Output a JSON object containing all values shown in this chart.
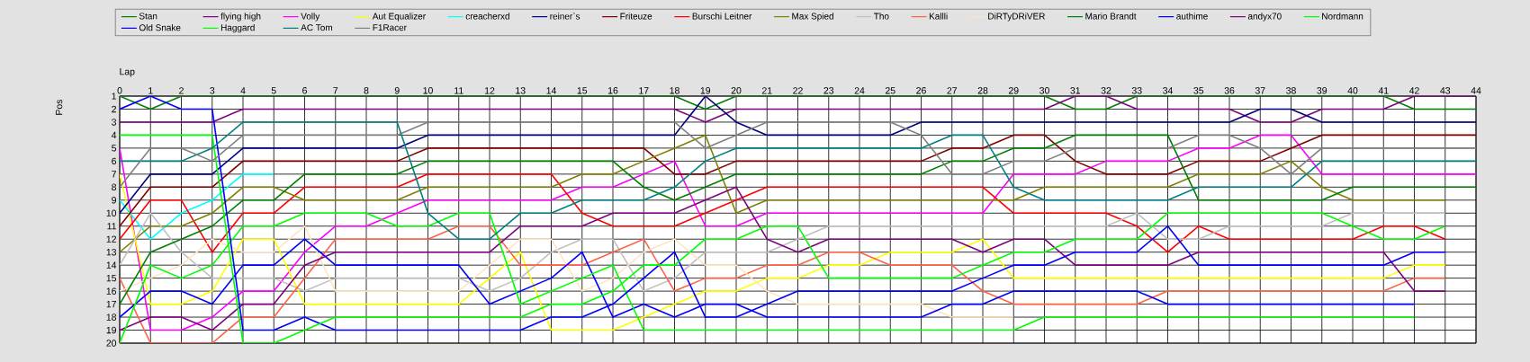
{
  "chart_data": {
    "type": "line",
    "xlabel": "Lap",
    "ylabel": "Pos",
    "xlim": [
      0,
      44
    ],
    "ylim": [
      20,
      1
    ],
    "xticks": [
      0,
      1,
      2,
      3,
      4,
      5,
      6,
      7,
      8,
      9,
      10,
      11,
      12,
      13,
      14,
      15,
      16,
      17,
      18,
      19,
      20,
      21,
      22,
      23,
      24,
      25,
      26,
      27,
      28,
      29,
      30,
      31,
      32,
      33,
      34,
      35,
      36,
      37,
      38,
      39,
      40,
      41,
      42,
      43,
      44
    ],
    "yticks": [
      1,
      2,
      3,
      4,
      5,
      6,
      7,
      8,
      9,
      10,
      11,
      12,
      13,
      14,
      15,
      16,
      17,
      18,
      19,
      20
    ],
    "x": [
      0,
      1,
      2,
      3,
      4,
      5,
      6,
      7,
      8,
      9,
      10,
      11,
      12,
      13,
      14,
      15,
      16,
      17,
      18,
      19,
      20,
      21,
      22,
      23,
      24,
      25,
      26,
      27,
      28,
      29,
      30,
      31,
      32,
      33,
      34,
      35,
      36,
      37,
      38,
      39,
      40,
      41,
      42,
      43,
      44
    ],
    "grid": true,
    "legend": "top",
    "series": [
      {
        "name": "Stan",
        "color": "#008000",
        "values": [
          1,
          2,
          1,
          1,
          1,
          1,
          1,
          1,
          1,
          1,
          1,
          1,
          1,
          1,
          1,
          1,
          1,
          1,
          1,
          2,
          1,
          1,
          1,
          1,
          1,
          1,
          1,
          1,
          1,
          1,
          1,
          2,
          2,
          1,
          1,
          1,
          1,
          1,
          1,
          1,
          1,
          1,
          2,
          2,
          2
        ]
      },
      {
        "name": "flying high",
        "color": "#800080",
        "values": [
          3,
          3,
          3,
          3,
          2,
          2,
          2,
          2,
          2,
          2,
          2,
          2,
          2,
          2,
          2,
          2,
          2,
          2,
          2,
          3,
          2,
          2,
          2,
          2,
          2,
          2,
          2,
          2,
          2,
          2,
          2,
          1,
          1,
          2,
          2,
          2,
          2,
          3,
          3,
          2,
          2,
          2,
          1,
          1,
          1
        ]
      },
      {
        "name": "Volly",
        "color": "#ff00ff",
        "values": [
          5,
          19,
          19,
          18,
          16,
          16,
          13,
          11,
          11,
          10,
          9,
          9,
          9,
          9,
          9,
          8,
          8,
          7,
          6,
          11,
          11,
          10,
          10,
          10,
          10,
          10,
          10,
          10,
          10,
          7,
          7,
          7,
          6,
          6,
          6,
          5,
          5,
          4,
          4,
          7,
          7,
          7,
          7,
          7,
          7
        ]
      },
      {
        "name": "Aut Equalizer",
        "color": "#ffff00",
        "values": [
          7,
          17,
          17,
          16,
          12,
          12,
          17,
          17,
          17,
          17,
          17,
          17,
          15,
          13,
          19,
          19,
          19,
          18,
          17,
          16,
          16,
          15,
          15,
          14,
          14,
          13,
          13,
          13,
          12,
          15,
          15,
          15,
          15,
          15,
          15,
          15,
          15,
          15,
          15,
          15,
          15,
          15,
          14,
          14,
          null
        ]
      },
      {
        "name": "creacherxd",
        "color": "#00ffff",
        "values": [
          9,
          12,
          10,
          9,
          7,
          7,
          null,
          null,
          null,
          null,
          null,
          null,
          null,
          null,
          null,
          null,
          null,
          null,
          null,
          null,
          null,
          null,
          null,
          null,
          null,
          null,
          null,
          null,
          null,
          null,
          null,
          null,
          null,
          null,
          null,
          null,
          null,
          null,
          null,
          null,
          null,
          null,
          null,
          null,
          null
        ]
      },
      {
        "name": "reiner`s",
        "color": "#000080",
        "values": [
          10,
          7,
          7,
          7,
          5,
          5,
          5,
          5,
          5,
          5,
          4,
          4,
          4,
          4,
          4,
          4,
          4,
          4,
          4,
          1,
          3,
          4,
          4,
          4,
          4,
          4,
          3,
          3,
          3,
          3,
          3,
          3,
          3,
          3,
          3,
          3,
          3,
          2,
          2,
          3,
          3,
          3,
          3,
          3,
          3
        ]
      },
      {
        "name": "Friteuze",
        "color": "#800000",
        "values": [
          11,
          8,
          8,
          8,
          6,
          6,
          6,
          6,
          6,
          6,
          5,
          5,
          5,
          5,
          5,
          5,
          5,
          5,
          7,
          7,
          6,
          6,
          6,
          6,
          6,
          6,
          6,
          5,
          5,
          4,
          4,
          6,
          7,
          7,
          7,
          6,
          6,
          6,
          5,
          4,
          4,
          4,
          4,
          4,
          4
        ]
      },
      {
        "name": "Burschi Leitner",
        "color": "#ff0000",
        "values": [
          12,
          9,
          9,
          13,
          10,
          10,
          8,
          8,
          8,
          8,
          7,
          7,
          7,
          7,
          7,
          10,
          11,
          11,
          11,
          10,
          9,
          8,
          8,
          8,
          8,
          8,
          8,
          8,
          8,
          10,
          10,
          10,
          10,
          11,
          13,
          11,
          12,
          12,
          12,
          12,
          12,
          11,
          11,
          12,
          null
        ]
      },
      {
        "name": "Max Spied",
        "color": "#808000",
        "values": [
          13,
          11,
          11,
          10,
          8,
          8,
          9,
          9,
          9,
          9,
          8,
          8,
          8,
          8,
          8,
          7,
          7,
          6,
          5,
          4,
          10,
          9,
          9,
          9,
          9,
          9,
          9,
          9,
          9,
          9,
          8,
          8,
          8,
          8,
          8,
          7,
          7,
          7,
          6,
          8,
          9,
          9,
          9,
          9,
          null
        ]
      },
      {
        "name": "Tho",
        "color": "#c0c0c0",
        "values": [
          14,
          10,
          13,
          15,
          15,
          15,
          16,
          15,
          15,
          15,
          15,
          15,
          16,
          15,
          13,
          12,
          12,
          16,
          15,
          13,
          13,
          13,
          12,
          11,
          11,
          11,
          11,
          11,
          11,
          11,
          11,
          11,
          11,
          10,
          12,
          12,
          11,
          11,
          11,
          11,
          10,
          10,
          10,
          10,
          null
        ]
      },
      {
        "name": "Kallli",
        "color": "#ff6347",
        "values": [
          15,
          20,
          20,
          20,
          18,
          18,
          15,
          12,
          12,
          12,
          12,
          11,
          11,
          14,
          14,
          14,
          13,
          12,
          16,
          15,
          15,
          14,
          14,
          13,
          13,
          14,
          14,
          14,
          16,
          17,
          17,
          17,
          17,
          17,
          16,
          16,
          16,
          16,
          16,
          16,
          16,
          16,
          15,
          15,
          null
        ]
      },
      {
        "name": "DiRTyDRiVER",
        "color": "#ffe4c4",
        "values": [
          16,
          15,
          14,
          12,
          13,
          13,
          11,
          16,
          16,
          16,
          16,
          16,
          14,
          12,
          12,
          16,
          15,
          13,
          12,
          14,
          14,
          16,
          17,
          17,
          17,
          17,
          17,
          18,
          18,
          18,
          null,
          null,
          null,
          null,
          null,
          null,
          null,
          null,
          null,
          null,
          null,
          null,
          null,
          null,
          null
        ]
      },
      {
        "name": "Mario Brandt",
        "color": "#008000",
        "values": [
          17,
          13,
          12,
          11,
          9,
          9,
          7,
          7,
          7,
          7,
          6,
          6,
          6,
          6,
          6,
          6,
          6,
          8,
          9,
          8,
          7,
          7,
          7,
          7,
          7,
          7,
          7,
          6,
          6,
          5,
          5,
          4,
          4,
          4,
          4,
          9,
          9,
          9,
          9,
          9,
          8,
          8,
          8,
          8,
          8
        ]
      },
      {
        "name": "authime",
        "color": "#0000ff",
        "values": [
          18,
          16,
          16,
          17,
          14,
          14,
          12,
          14,
          14,
          14,
          14,
          14,
          17,
          16,
          15,
          13,
          18,
          17,
          18,
          17,
          17,
          18,
          18,
          18,
          18,
          18,
          18,
          17,
          17,
          16,
          16,
          16,
          16,
          16,
          17,
          17,
          17,
          17,
          17,
          17,
          17,
          17,
          17,
          null,
          null
        ]
      },
      {
        "name": "andyx70",
        "color": "#800080",
        "values": [
          19,
          18,
          18,
          19,
          17,
          17,
          14,
          13,
          13,
          13,
          13,
          13,
          13,
          11,
          11,
          11,
          10,
          10,
          10,
          9,
          8,
          12,
          13,
          12,
          12,
          12,
          12,
          12,
          13,
          12,
          12,
          14,
          14,
          14,
          14,
          13,
          13,
          13,
          13,
          13,
          13,
          13,
          16,
          16,
          null
        ]
      },
      {
        "name": "Nordmann",
        "color": "#00ff00",
        "values": [
          20,
          14,
          15,
          14,
          11,
          11,
          10,
          10,
          10,
          11,
          11,
          10,
          10,
          17,
          16,
          15,
          14,
          19,
          19,
          19,
          19,
          19,
          19,
          19,
          19,
          19,
          19,
          19,
          19,
          19,
          18,
          18,
          18,
          18,
          18,
          18,
          18,
          18,
          18,
          18,
          18,
          18,
          18,
          null,
          null
        ]
      },
      {
        "name": "Old Snake",
        "color": "#0000ff",
        "values": [
          2,
          1,
          2,
          2,
          19,
          19,
          18,
          19,
          19,
          19,
          19,
          19,
          19,
          19,
          18,
          18,
          17,
          15,
          13,
          18,
          18,
          17,
          16,
          16,
          16,
          16,
          16,
          16,
          15,
          14,
          14,
          13,
          13,
          13,
          11,
          14,
          14,
          14,
          14,
          14,
          14,
          14,
          13,
          13,
          null
        ]
      },
      {
        "name": "Haggard",
        "color": "#00ff00",
        "values": [
          4,
          4,
          4,
          4,
          20,
          20,
          19,
          18,
          18,
          18,
          18,
          18,
          18,
          18,
          17,
          17,
          16,
          14,
          14,
          12,
          12,
          11,
          11,
          15,
          15,
          15,
          15,
          15,
          14,
          13,
          13,
          12,
          12,
          12,
          10,
          10,
          10,
          10,
          10,
          10,
          11,
          12,
          12,
          11,
          null
        ]
      },
      {
        "name": "AC Tom",
        "color": "#008080",
        "values": [
          6,
          6,
          6,
          5,
          3,
          3,
          3,
          3,
          3,
          3,
          10,
          12,
          12,
          10,
          10,
          9,
          9,
          9,
          8,
          6,
          5,
          5,
          5,
          5,
          5,
          5,
          5,
          4,
          4,
          8,
          9,
          9,
          9,
          9,
          9,
          8,
          8,
          8,
          8,
          6,
          6,
          6,
          6,
          6,
          6
        ]
      },
      {
        "name": "F1Racer",
        "color": "#808080",
        "values": [
          8,
          5,
          5,
          6,
          4,
          4,
          4,
          4,
          4,
          4,
          3,
          3,
          3,
          3,
          3,
          3,
          3,
          3,
          3,
          5,
          4,
          3,
          3,
          3,
          3,
          3,
          4,
          7,
          7,
          6,
          6,
          5,
          5,
          5,
          5,
          4,
          4,
          5,
          7,
          5,
          5,
          5,
          5,
          5,
          5
        ]
      }
    ]
  }
}
